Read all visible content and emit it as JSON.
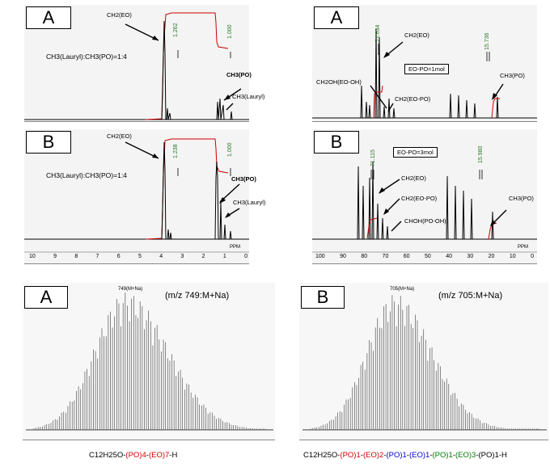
{
  "panels": {
    "h1_a": {
      "tag": "A",
      "peak_label_1": "CH2(EO)",
      "ratio": "CH3(Lauryl):CH3(PO)=1:4",
      "integral_1": "1.262",
      "integral_2": "1.000",
      "peak_label_2": "CH3(PO)",
      "peak_label_3": "CH3(Lauryl)"
    },
    "c13_a": {
      "tag": "A",
      "peak_label_1": "CH2(EO)",
      "box": "EO-PO=1mol",
      "peak_label_2": "CH2OH(EO-OH)",
      "peak_label_3": "CH2(EO-PO)",
      "peak_label_4": "CH3(PO)",
      "integral_1": "71.634",
      "integral_2": "15.736"
    },
    "h1_b": {
      "tag": "B",
      "peak_label_1": "CH2(EO)",
      "ratio": "CH3(Lauryl):CH3(PO)=1:4",
      "integral_1": "1.238",
      "integral_2": "1.000",
      "peak_label_2": "CH3(PO)",
      "peak_label_3": "CH3(Lauryl)",
      "axis_unit": "PPM",
      "axis_ticks": [
        "10",
        "9",
        "8",
        "7",
        "6",
        "5",
        "4",
        "3",
        "2",
        "1",
        "0"
      ]
    },
    "c13_b": {
      "tag": "B",
      "peak_label_1": "CH2(EO)",
      "box": "EO-PO=3mol",
      "peak_label_2": "CH2(EO-PO)",
      "peak_label_3": "CHOH(PO-OH)",
      "peak_label_4": "CH3(PO)",
      "integral_1": "71.115",
      "integral_2": "15.980",
      "axis_unit": "PPM",
      "axis_ticks": [
        "100",
        "90",
        "80",
        "70",
        "60",
        "50",
        "40",
        "30",
        "20",
        "10",
        "0"
      ]
    },
    "ms_a": {
      "tag": "A",
      "note": "(m/z 749:M+Na)",
      "top_label": "749(M+Na)",
      "formula": {
        "prefix": "C12H25O-",
        "part1": "(PO)4",
        "sep1": "-",
        "part2": "(EO)7",
        "suffix": "-H"
      }
    },
    "ms_b": {
      "tag": "B",
      "note": "(m/z 705:M+Na)",
      "top_label": "705(M+Na)",
      "formula": {
        "prefix": "C12H25O-",
        "p1": "(PO)1",
        "s1": "-",
        "p2": "(EO)2",
        "s2": "-",
        "p3": "(PO)1",
        "s3": "-",
        "p4": "(EO)1",
        "s4": "-",
        "p5": "(PO)1",
        "s5": "-",
        "p6": "(EO)3",
        "s6": "-",
        "p7": "(PO)1",
        "suffix": "-H"
      }
    }
  },
  "colors": {
    "red": "#d00000",
    "blue": "#0000cc",
    "green": "#007a00",
    "integral": "#2a7a2a"
  }
}
